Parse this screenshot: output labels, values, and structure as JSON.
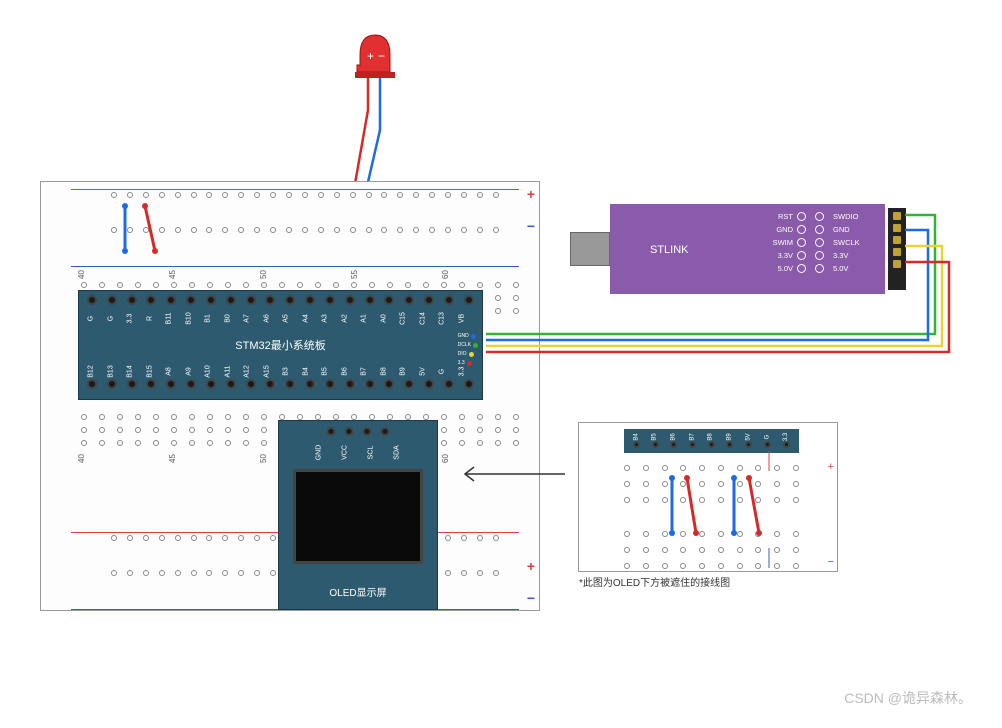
{
  "breadboard": {
    "col_numbers": [
      "40",
      "45",
      "50",
      "55",
      "60"
    ],
    "plus": "+",
    "minus": "−",
    "hole_border": "#888888",
    "rail_blue": "#3b5bcc",
    "rail_red": "#d94040"
  },
  "stm32": {
    "title": "STM32最小系统板",
    "bg": "#2d5a6e",
    "top_pins": [
      "G",
      "G",
      "3.3",
      "R",
      "B11",
      "B10",
      "B1",
      "B0",
      "A7",
      "A6",
      "A5",
      "A4",
      "A3",
      "A2",
      "A1",
      "A0",
      "C15",
      "C14",
      "C13",
      "VB"
    ],
    "bottom_pins": [
      "B12",
      "B13",
      "B14",
      "B15",
      "A8",
      "A9",
      "A10",
      "A11",
      "A12",
      "A15",
      "B3",
      "B4",
      "B5",
      "B6",
      "B7",
      "B8",
      "B9",
      "5V",
      "G",
      "3.3"
    ],
    "debug_pins": [
      "GND",
      "DCLK",
      "DIO",
      "3.3"
    ],
    "debug_colors": [
      "#1e6ae5",
      "#33b233",
      "#e8d433",
      "#d42a2a"
    ]
  },
  "oled": {
    "title": "OLED显示屏",
    "pins": [
      "GND",
      "VCC",
      "SCL",
      "SDA"
    ],
    "bg": "#2d5a6e",
    "screen_bg": "#0a0a0a"
  },
  "stlink": {
    "title": "STLINK",
    "bg": "#8a5aab",
    "labels_left": [
      "RST",
      "GND",
      "SWIM",
      "3.3V",
      "5.0V"
    ],
    "labels_right": [
      "SWDIO",
      "GND",
      "SWCLK",
      "3.3V",
      "5.0V"
    ]
  },
  "inset": {
    "pins": [
      "B4",
      "B5",
      "B6",
      "B7",
      "B8",
      "B9",
      "5V",
      "G",
      "3.3"
    ],
    "caption": "*此图为OLED下方被遮住的接线图"
  },
  "wires": {
    "colors": {
      "green": "#33b233",
      "blue": "#1e6ae5",
      "yellow": "#e8d433",
      "red": "#d42a2a",
      "black": "#1a1a1a"
    }
  },
  "led": {
    "body_color": "#e03030",
    "plus": "+",
    "minus": "−"
  },
  "watermark": "CSDN @诡异森林。",
  "arrow_color": "#333333"
}
